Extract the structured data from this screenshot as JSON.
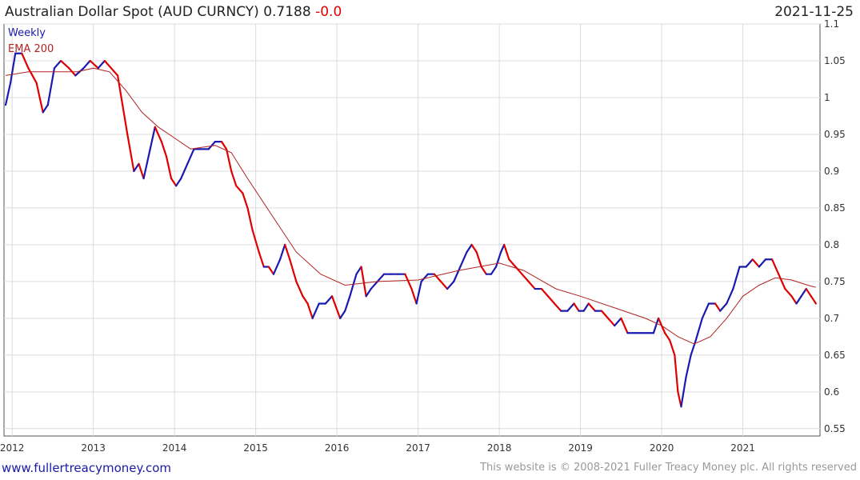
{
  "header": {
    "title": "Australian Dollar Spot (AUD CURNCY) 0.7188",
    "change": "-0.0",
    "date": "2021-11-25"
  },
  "footer": {
    "site": "www.fullertreacymoney.com",
    "copyright": "This website is © 2008-2021 Fuller Treacy Money plc. All rights reserved"
  },
  "chart_data": {
    "type": "line",
    "legend": [
      {
        "label": "Weekly",
        "color": "#1a1ab0"
      },
      {
        "label": "EMA 200",
        "color": "#b22222"
      }
    ],
    "legend_position": "top-left",
    "y_axis_side": "right",
    "ylim": [
      0.54,
      1.1
    ],
    "yticks": [
      {
        "v": 1.1,
        "label": "1.1"
      },
      {
        "v": 1.05,
        "label": "1.05"
      },
      {
        "v": 1.0,
        "label": "1"
      },
      {
        "v": 0.95,
        "label": "0.95"
      },
      {
        "v": 0.9,
        "label": "0.9"
      },
      {
        "v": 0.85,
        "label": "0.85"
      },
      {
        "v": 0.8,
        "label": "0.8"
      },
      {
        "v": 0.75,
        "label": "0.75"
      },
      {
        "v": 0.7,
        "label": "0.7"
      },
      {
        "v": 0.65,
        "label": "0.65"
      },
      {
        "v": 0.6,
        "label": "0.6"
      },
      {
        "v": 0.55,
        "label": "0.55"
      }
    ],
    "xlim": [
      2011.9,
      2021.95
    ],
    "xticks": [
      {
        "v": 2012,
        "label": "2012"
      },
      {
        "v": 2013,
        "label": "2013"
      },
      {
        "v": 2014,
        "label": "2014"
      },
      {
        "v": 2015,
        "label": "2015"
      },
      {
        "v": 2016,
        "label": "2016"
      },
      {
        "v": 2017,
        "label": "2017"
      },
      {
        "v": 2018,
        "label": "2018"
      },
      {
        "v": 2019,
        "label": "2019"
      },
      {
        "v": 2020,
        "label": "2020"
      },
      {
        "v": 2021,
        "label": "2021"
      }
    ],
    "grid": true,
    "series": [
      {
        "name": "Weekly",
        "up_color": "#1a1ab0",
        "down_color": "#e00000",
        "points": [
          [
            2011.92,
            0.99
          ],
          [
            2011.98,
            1.02
          ],
          [
            2012.04,
            1.06
          ],
          [
            2012.12,
            1.06
          ],
          [
            2012.2,
            1.04
          ],
          [
            2012.3,
            1.02
          ],
          [
            2012.38,
            0.98
          ],
          [
            2012.44,
            0.99
          ],
          [
            2012.52,
            1.04
          ],
          [
            2012.6,
            1.05
          ],
          [
            2012.7,
            1.04
          ],
          [
            2012.78,
            1.03
          ],
          [
            2012.88,
            1.04
          ],
          [
            2012.96,
            1.05
          ],
          [
            2013.06,
            1.04
          ],
          [
            2013.14,
            1.05
          ],
          [
            2013.22,
            1.04
          ],
          [
            2013.3,
            1.03
          ],
          [
            2013.36,
            0.99
          ],
          [
            2013.42,
            0.95
          ],
          [
            2013.5,
            0.9
          ],
          [
            2013.56,
            0.91
          ],
          [
            2013.62,
            0.89
          ],
          [
            2013.7,
            0.93
          ],
          [
            2013.76,
            0.96
          ],
          [
            2013.84,
            0.94
          ],
          [
            2013.9,
            0.92
          ],
          [
            2013.96,
            0.89
          ],
          [
            2014.02,
            0.88
          ],
          [
            2014.08,
            0.89
          ],
          [
            2014.16,
            0.91
          ],
          [
            2014.24,
            0.93
          ],
          [
            2014.32,
            0.93
          ],
          [
            2014.42,
            0.93
          ],
          [
            2014.5,
            0.94
          ],
          [
            2014.58,
            0.94
          ],
          [
            2014.64,
            0.93
          ],
          [
            2014.7,
            0.9
          ],
          [
            2014.76,
            0.88
          ],
          [
            2014.84,
            0.87
          ],
          [
            2014.9,
            0.85
          ],
          [
            2014.96,
            0.82
          ],
          [
            2015.04,
            0.79
          ],
          [
            2015.1,
            0.77
          ],
          [
            2015.16,
            0.77
          ],
          [
            2015.22,
            0.76
          ],
          [
            2015.3,
            0.78
          ],
          [
            2015.36,
            0.8
          ],
          [
            2015.42,
            0.78
          ],
          [
            2015.5,
            0.75
          ],
          [
            2015.58,
            0.73
          ],
          [
            2015.64,
            0.72
          ],
          [
            2015.7,
            0.7
          ],
          [
            2015.78,
            0.72
          ],
          [
            2015.86,
            0.72
          ],
          [
            2015.94,
            0.73
          ],
          [
            2016.04,
            0.7
          ],
          [
            2016.1,
            0.71
          ],
          [
            2016.16,
            0.73
          ],
          [
            2016.24,
            0.76
          ],
          [
            2016.3,
            0.77
          ],
          [
            2016.36,
            0.73
          ],
          [
            2016.42,
            0.74
          ],
          [
            2016.5,
            0.75
          ],
          [
            2016.58,
            0.76
          ],
          [
            2016.66,
            0.76
          ],
          [
            2016.76,
            0.76
          ],
          [
            2016.84,
            0.76
          ],
          [
            2016.92,
            0.74
          ],
          [
            2016.98,
            0.72
          ],
          [
            2017.04,
            0.75
          ],
          [
            2017.12,
            0.76
          ],
          [
            2017.2,
            0.76
          ],
          [
            2017.28,
            0.75
          ],
          [
            2017.36,
            0.74
          ],
          [
            2017.44,
            0.75
          ],
          [
            2017.52,
            0.77
          ],
          [
            2017.6,
            0.79
          ],
          [
            2017.66,
            0.8
          ],
          [
            2017.72,
            0.79
          ],
          [
            2017.78,
            0.77
          ],
          [
            2017.84,
            0.76
          ],
          [
            2017.9,
            0.76
          ],
          [
            2017.96,
            0.77
          ],
          [
            2018.02,
            0.79
          ],
          [
            2018.06,
            0.8
          ],
          [
            2018.12,
            0.78
          ],
          [
            2018.2,
            0.77
          ],
          [
            2018.28,
            0.76
          ],
          [
            2018.36,
            0.75
          ],
          [
            2018.44,
            0.74
          ],
          [
            2018.52,
            0.74
          ],
          [
            2018.6,
            0.73
          ],
          [
            2018.68,
            0.72
          ],
          [
            2018.76,
            0.71
          ],
          [
            2018.84,
            0.71
          ],
          [
            2018.92,
            0.72
          ],
          [
            2018.98,
            0.71
          ],
          [
            2019.04,
            0.71
          ],
          [
            2019.1,
            0.72
          ],
          [
            2019.18,
            0.71
          ],
          [
            2019.26,
            0.71
          ],
          [
            2019.34,
            0.7
          ],
          [
            2019.42,
            0.69
          ],
          [
            2019.5,
            0.7
          ],
          [
            2019.58,
            0.68
          ],
          [
            2019.66,
            0.68
          ],
          [
            2019.74,
            0.68
          ],
          [
            2019.82,
            0.68
          ],
          [
            2019.9,
            0.68
          ],
          [
            2019.96,
            0.7
          ],
          [
            2020.04,
            0.68
          ],
          [
            2020.1,
            0.67
          ],
          [
            2020.16,
            0.65
          ],
          [
            2020.2,
            0.6
          ],
          [
            2020.24,
            0.58
          ],
          [
            2020.3,
            0.62
          ],
          [
            2020.36,
            0.65
          ],
          [
            2020.42,
            0.67
          ],
          [
            2020.5,
            0.7
          ],
          [
            2020.58,
            0.72
          ],
          [
            2020.66,
            0.72
          ],
          [
            2020.72,
            0.71
          ],
          [
            2020.8,
            0.72
          ],
          [
            2020.88,
            0.74
          ],
          [
            2020.96,
            0.77
          ],
          [
            2021.04,
            0.77
          ],
          [
            2021.12,
            0.78
          ],
          [
            2021.2,
            0.77
          ],
          [
            2021.28,
            0.78
          ],
          [
            2021.36,
            0.78
          ],
          [
            2021.44,
            0.76
          ],
          [
            2021.52,
            0.74
          ],
          [
            2021.6,
            0.73
          ],
          [
            2021.66,
            0.72
          ],
          [
            2021.72,
            0.73
          ],
          [
            2021.78,
            0.74
          ],
          [
            2021.84,
            0.73
          ],
          [
            2021.9,
            0.72
          ]
        ]
      },
      {
        "name": "EMA 200",
        "color": "#b22222",
        "points": [
          [
            2011.92,
            1.03
          ],
          [
            2012.2,
            1.035
          ],
          [
            2012.5,
            1.035
          ],
          [
            2012.8,
            1.035
          ],
          [
            2013.0,
            1.04
          ],
          [
            2013.2,
            1.035
          ],
          [
            2013.4,
            1.01
          ],
          [
            2013.6,
            0.98
          ],
          [
            2013.8,
            0.96
          ],
          [
            2014.0,
            0.945
          ],
          [
            2014.2,
            0.93
          ],
          [
            2014.5,
            0.935
          ],
          [
            2014.7,
            0.925
          ],
          [
            2014.9,
            0.89
          ],
          [
            2015.2,
            0.84
          ],
          [
            2015.5,
            0.79
          ],
          [
            2015.8,
            0.76
          ],
          [
            2016.1,
            0.745
          ],
          [
            2016.5,
            0.75
          ],
          [
            2017.0,
            0.752
          ],
          [
            2017.5,
            0.765
          ],
          [
            2018.0,
            0.775
          ],
          [
            2018.3,
            0.765
          ],
          [
            2018.7,
            0.74
          ],
          [
            2019.0,
            0.73
          ],
          [
            2019.4,
            0.715
          ],
          [
            2019.8,
            0.7
          ],
          [
            2020.0,
            0.69
          ],
          [
            2020.2,
            0.675
          ],
          [
            2020.4,
            0.665
          ],
          [
            2020.6,
            0.675
          ],
          [
            2020.8,
            0.7
          ],
          [
            2021.0,
            0.73
          ],
          [
            2021.2,
            0.745
          ],
          [
            2021.4,
            0.755
          ],
          [
            2021.6,
            0.752
          ],
          [
            2021.8,
            0.745
          ],
          [
            2021.9,
            0.742
          ]
        ]
      }
    ]
  }
}
